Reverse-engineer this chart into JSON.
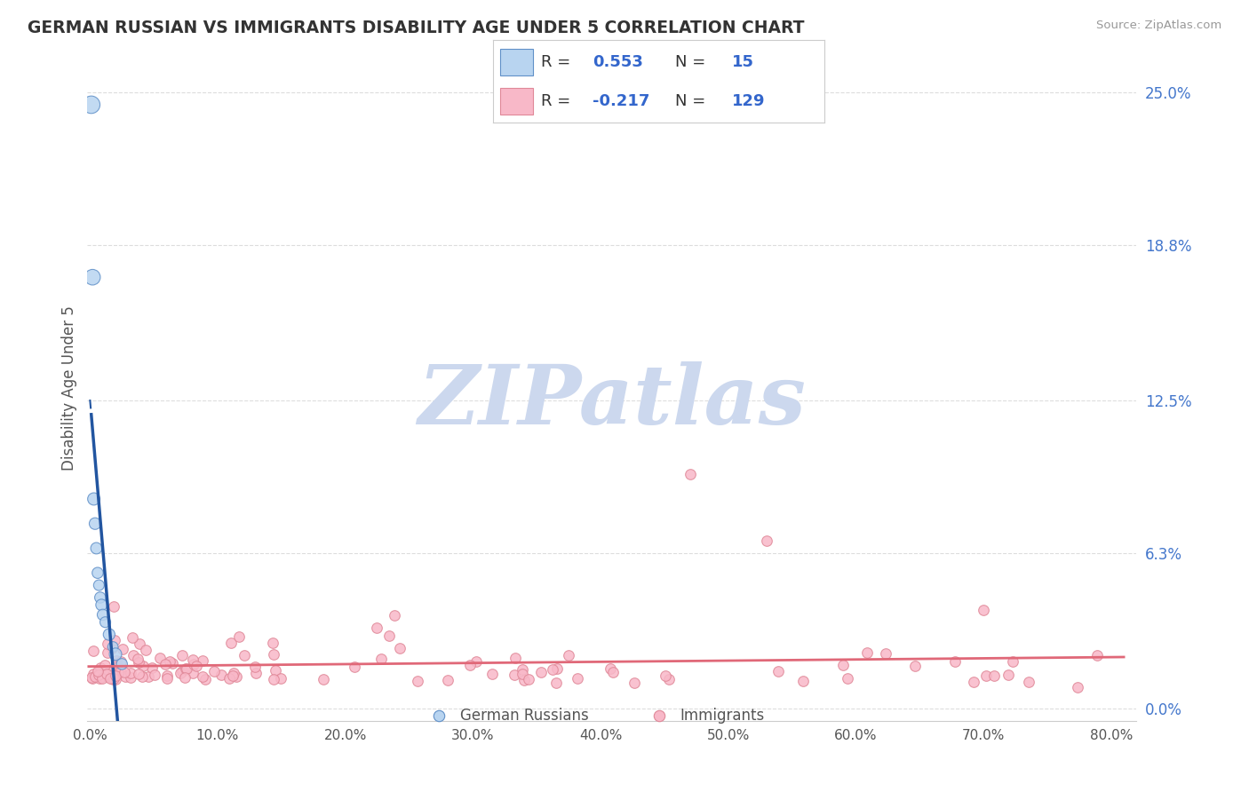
{
  "title": "GERMAN RUSSIAN VS IMMIGRANTS DISABILITY AGE UNDER 5 CORRELATION CHART",
  "source": "Source: ZipAtlas.com",
  "ylabel": "Disability Age Under 5",
  "xlim": [
    -0.002,
    0.82
  ],
  "ylim": [
    -0.005,
    0.265
  ],
  "ytick_vals": [
    0.0,
    0.063,
    0.125,
    0.188,
    0.25
  ],
  "ytick_labels": [
    "0.0%",
    "6.3%",
    "12.5%",
    "18.8%",
    "25.0%"
  ],
  "xtick_vals": [
    0.0,
    0.1,
    0.2,
    0.3,
    0.4,
    0.5,
    0.6,
    0.7,
    0.8
  ],
  "xtick_labels": [
    "0.0%",
    "10.0%",
    "20.0%",
    "30.0%",
    "40.0%",
    "50.0%",
    "60.0%",
    "70.0%",
    "80.0%"
  ],
  "gr_R": "0.553",
  "gr_N": "15",
  "im_R": "-0.217",
  "im_N": "129",
  "gr_fill": "#b8d4f0",
  "gr_edge": "#6090c8",
  "gr_line": "#2255a0",
  "im_fill": "#f8b8c8",
  "im_edge": "#e08898",
  "im_line": "#e06878",
  "legend_text_color": "#3366cc",
  "label_color": "#555555",
  "ytick_color": "#4477cc",
  "grid_color": "#dddddd",
  "watermark_color": "#ccd8ee",
  "background": "#ffffff",
  "watermark": "ZIPatlas",
  "gr_x": [
    0.001,
    0.002,
    0.003,
    0.004,
    0.005,
    0.006,
    0.007,
    0.008,
    0.009,
    0.01,
    0.012,
    0.015,
    0.018,
    0.02,
    0.025
  ],
  "gr_y": [
    0.245,
    0.175,
    0.085,
    0.075,
    0.065,
    0.055,
    0.05,
    0.045,
    0.042,
    0.038,
    0.035,
    0.03,
    0.025,
    0.022,
    0.018
  ],
  "gr_sizes": [
    200,
    160,
    100,
    90,
    85,
    80,
    75,
    80,
    85,
    80,
    75,
    90,
    70,
    100,
    80
  ]
}
